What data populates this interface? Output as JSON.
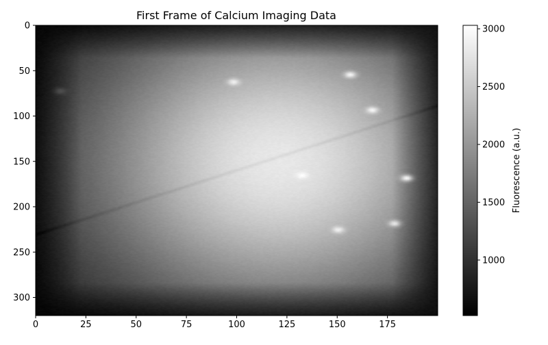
{
  "chart_data": {
    "type": "heatmap",
    "title": "First Frame of Calcium Imaging Data",
    "xlabel": "",
    "ylabel": "",
    "xlim": [
      0,
      200
    ],
    "ylim": [
      320,
      0
    ],
    "x_ticks": [
      0,
      25,
      50,
      75,
      100,
      125,
      150,
      175
    ],
    "y_ticks": [
      0,
      50,
      100,
      150,
      200,
      250,
      300
    ],
    "colormap": "gray",
    "colorbar": {
      "label": "Fluorescence (a.u.)",
      "range": [
        520,
        3030
      ],
      "ticks": [
        1000,
        1500,
        2000,
        2500,
        3000
      ]
    },
    "image": {
      "rows": 320,
      "cols": 200,
      "description": "Grayscale fluorescence frame: dark edges (~600 a.u.) with a bright central-right region (~2700-2900 a.u.), a faint dark diagonal vessel and several small bright cell spots.",
      "center_value": 2800,
      "edge_value": 600,
      "bright_spots": [
        {
          "x": 98,
          "y": 62,
          "value": 2900
        },
        {
          "x": 156,
          "y": 54,
          "value": 2950
        },
        {
          "x": 167,
          "y": 93,
          "value": 2950
        },
        {
          "x": 132,
          "y": 165,
          "value": 3030
        },
        {
          "x": 184,
          "y": 168,
          "value": 2950
        },
        {
          "x": 150,
          "y": 225,
          "value": 2900
        },
        {
          "x": 178,
          "y": 218,
          "value": 2800
        },
        {
          "x": 12,
          "y": 72,
          "value": 1300
        }
      ],
      "vessel": {
        "from": [
          0,
          230
        ],
        "to": [
          200,
          88
        ]
      }
    }
  },
  "colors": {
    "axis": "#000000",
    "background": "#ffffff"
  }
}
